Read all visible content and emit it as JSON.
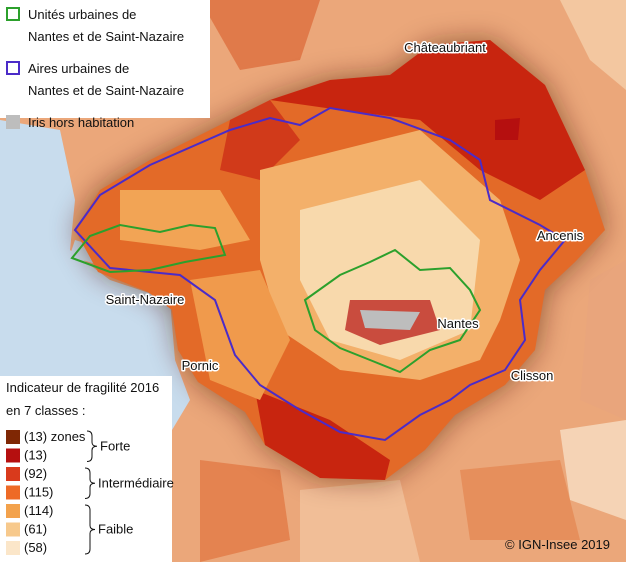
{
  "legend_top": {
    "items": [
      {
        "lines": [
          "Unités urbaines de",
          "Nantes et de Saint-Nazaire"
        ],
        "color": "#2ca02c",
        "style": "outline"
      },
      {
        "lines": [
          "Aires urbaines de",
          "Nantes et de Saint-Nazaire"
        ],
        "color": "#4b2bc8",
        "style": "outline"
      },
      {
        "lines": [
          "Iris hors habitation"
        ],
        "color": "#bdbdbd",
        "style": "fill"
      }
    ]
  },
  "places": [
    "Châteaubriant",
    "Ancenis",
    "Saint-Nazaire",
    "Nantes",
    "Pornic",
    "Clisson"
  ],
  "legend_bottom": {
    "title": [
      "Indicateur de fragilité 2016",
      "en 7 classes :"
    ],
    "classes": [
      {
        "label": "(13) zones",
        "color": "#7f2704"
      },
      {
        "label": "(13)",
        "color": "#b50f0f"
      },
      {
        "label": "(92)",
        "color": "#d93a1c"
      },
      {
        "label": "(115)",
        "color": "#ee6a26"
      },
      {
        "label": "(114)",
        "color": "#f3a24c"
      },
      {
        "label": "(61)",
        "color": "#f7c98c"
      },
      {
        "label": "(58)",
        "color": "#fbe6c9"
      }
    ],
    "groups": [
      "Forte",
      "Intermédiaire",
      "Faible"
    ]
  },
  "credit": "© IGN-Insee 2019"
}
